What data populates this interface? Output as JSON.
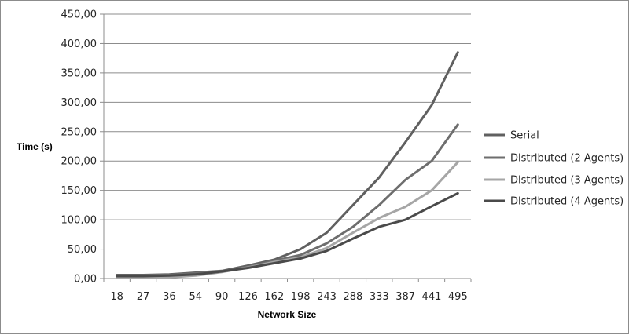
{
  "chart_data": {
    "type": "line",
    "title": "",
    "xlabel": "Network Size",
    "ylabel": "Time (s)",
    "categories": [
      "18",
      "27",
      "36",
      "54",
      "90",
      "126",
      "162",
      "198",
      "243",
      "288",
      "333",
      "387",
      "441",
      "495"
    ],
    "ylim": [
      0,
      450
    ],
    "ytick_step": 50,
    "ytick_labels": [
      "0,00",
      "50,00",
      "100,00",
      "150,00",
      "200,00",
      "250,00",
      "300,00",
      "350,00",
      "400,00",
      "450,00"
    ],
    "grid": "horizontal",
    "legend_position": "right",
    "series": [
      {
        "name": "Serial",
        "color": "#606060",
        "values": [
          6,
          6,
          7,
          10,
          13,
          22,
          32,
          50,
          78,
          125,
          172,
          232,
          295,
          385
        ]
      },
      {
        "name": "Distributed (2 Agents)",
        "color": "#6e6e6e",
        "values": [
          5,
          5,
          6,
          9,
          12,
          20,
          30,
          40,
          60,
          88,
          125,
          168,
          200,
          262
        ]
      },
      {
        "name": "Distributed (3 Agents)",
        "color": "#a6a6a6",
        "values": [
          1,
          1,
          2,
          5,
          11,
          19,
          28,
          36,
          52,
          78,
          103,
          122,
          150,
          198
        ]
      },
      {
        "name": "Distributed (4 Agents)",
        "color": "#4a4a4a",
        "values": [
          4,
          4,
          5,
          7,
          12,
          18,
          26,
          34,
          47,
          68,
          88,
          100,
          123,
          145
        ]
      }
    ]
  }
}
